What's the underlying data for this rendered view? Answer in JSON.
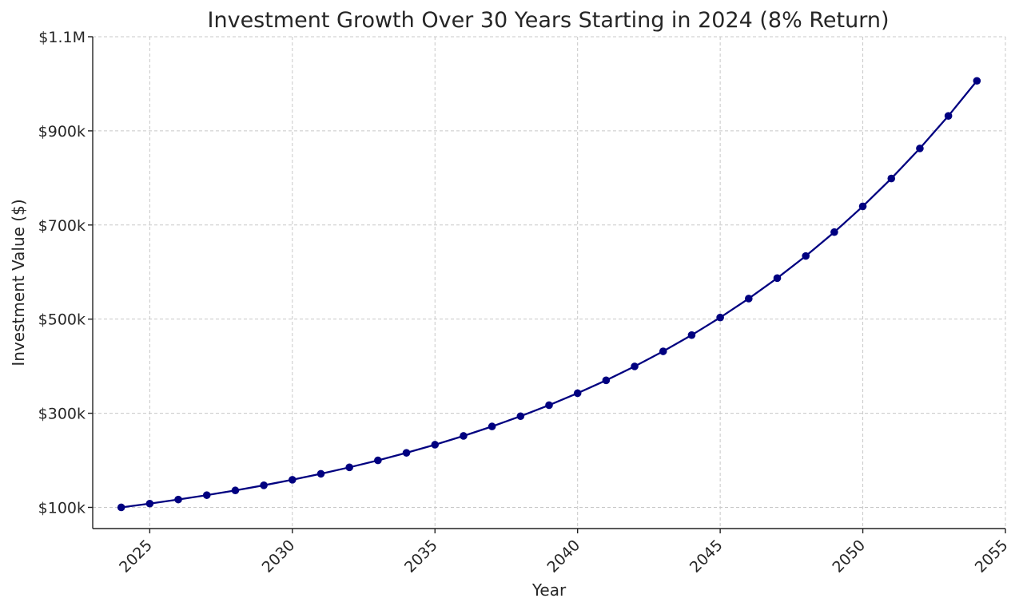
{
  "chart_data": {
    "type": "line",
    "title": "Investment Growth Over 30 Years Starting in 2024 (8% Return)",
    "xlabel": "Year",
    "ylabel": "Investment Value ($)",
    "xlim": [
      2023,
      2055
    ],
    "ylim": [
      55000,
      1100000
    ],
    "x_ticks": [
      2025,
      2030,
      2035,
      2040,
      2045,
      2050,
      2055
    ],
    "y_ticks": [
      {
        "value": 100000,
        "label": "$100k"
      },
      {
        "value": 300000,
        "label": "$300k"
      },
      {
        "value": 500000,
        "label": "$500k"
      },
      {
        "value": 700000,
        "label": "$700k"
      },
      {
        "value": 900000,
        "label": "$900k"
      },
      {
        "value": 1100000,
        "label": "$1.1M"
      }
    ],
    "grid": true,
    "series": [
      {
        "color": "#000080",
        "x": [
          2024,
          2025,
          2026,
          2027,
          2028,
          2029,
          2030,
          2031,
          2032,
          2033,
          2034,
          2035,
          2036,
          2037,
          2038,
          2039,
          2040,
          2041,
          2042,
          2043,
          2044,
          2045,
          2046,
          2047,
          2048,
          2049,
          2050,
          2051,
          2052,
          2053,
          2054
        ],
        "values": [
          100000,
          108000,
          116640,
          125971,
          136049,
          146933,
          158687,
          171382,
          185093,
          199900,
          215892,
          233164,
          251817,
          271962,
          293719,
          317217,
          342594,
          370002,
          399602,
          431570,
          466096,
          503383,
          543654,
          587146,
          634118,
          684848,
          739635,
          798806,
          862711,
          931727,
          1006266
        ]
      }
    ]
  }
}
